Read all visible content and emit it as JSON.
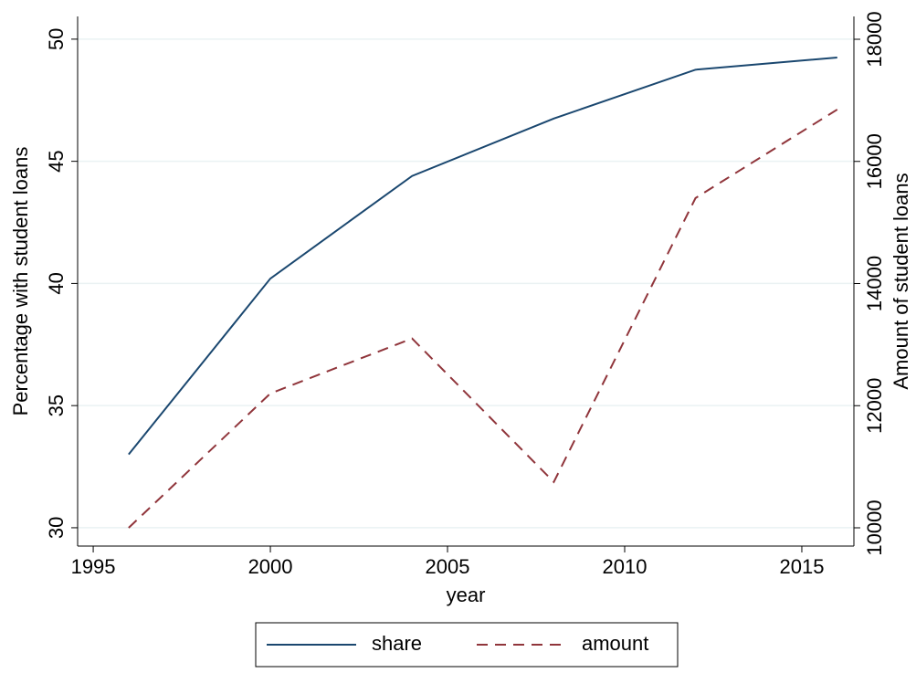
{
  "chart_data": {
    "type": "line",
    "x_label": "year",
    "y_label": "Percentage with student loans",
    "y2_label": "Amount of student loans",
    "x": [
      1996,
      2000,
      2004,
      2008,
      2012,
      2016
    ],
    "series": [
      {
        "name": "share",
        "color": "#1a476f",
        "dash": false,
        "values": [
          33.0,
          40.2,
          44.4,
          46.75,
          48.75,
          49.25
        ]
      },
      {
        "name": "amount",
        "color": "#90353b",
        "dash": true,
        "axis": "y2",
        "values": [
          10000,
          12200,
          13100,
          10750,
          15400,
          16850
        ]
      }
    ],
    "xlim": [
      1994.56,
      2016.47
    ],
    "xticks": [
      1995,
      2000,
      2005,
      2010,
      2015
    ],
    "ylim": [
      29.25,
      50.93
    ],
    "yticks": [
      30,
      35,
      40,
      45,
      50
    ],
    "y2lim": [
      9701,
      18374
    ],
    "y2ticks": [
      10000,
      12000,
      14000,
      16000,
      18000
    ],
    "grid": true,
    "legend": "bottom"
  }
}
